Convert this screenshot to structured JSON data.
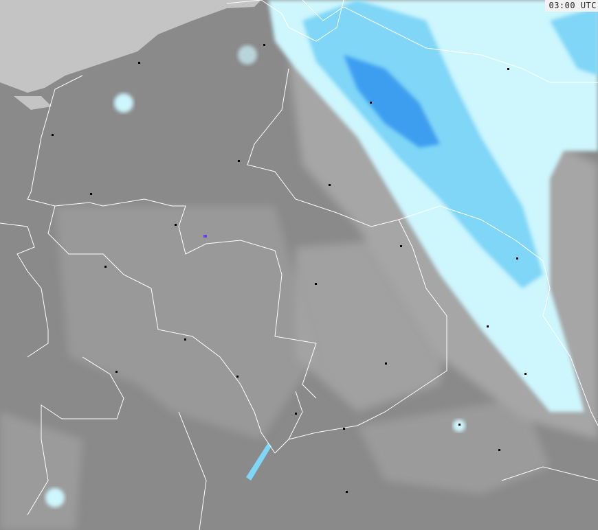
{
  "time_label": "03:00 UTC",
  "colors": {
    "sea": "#c4c4c4",
    "land": "#8a8a8a",
    "cloud_light": "#a8a8a8",
    "precip_light": "#cdf6fd",
    "precip_medium": "#7fd6f7",
    "precip_heavy": "#3c9ef0",
    "borders": "#ffffff",
    "cities": "#000000"
  }
}
